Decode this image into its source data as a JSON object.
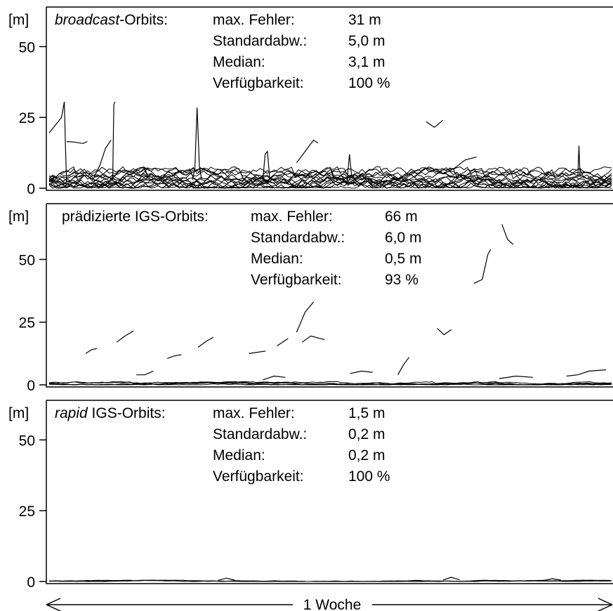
{
  "chart_data": [
    {
      "type": "line",
      "unit_label": "[m]",
      "title_prefix_italic": "broadcast",
      "title_suffix": "-Orbits:",
      "ylim": [
        0,
        62
      ],
      "yticks": [
        {
          "value": 0,
          "label": "0"
        },
        {
          "value": 25,
          "label": "25"
        },
        {
          "value": 50,
          "label": "50"
        }
      ],
      "stats": {
        "labels": [
          "max. Fehler:",
          "Standardabw.:",
          "Median:",
          "Verfügbarkeit:"
        ],
        "values": [
          "31 m",
          "5,0 m",
          "3,1 m",
          "100 %"
        ]
      },
      "noise": {
        "base": 3.1,
        "amp": 4.5,
        "count": 16
      },
      "traces": [
        {
          "x": [
            0.0,
            0.008,
            0.022,
            0.027
          ],
          "y": [
            19.5,
            21.5,
            25,
            30.5
          ]
        },
        {
          "x": [
            0.027,
            0.029,
            0.031
          ],
          "y": [
            30.5,
            15,
            2
          ]
        },
        {
          "x": [
            0.031,
            0.045,
            0.06,
            0.068
          ],
          "y": [
            16.5,
            16.3,
            15.8,
            16.5
          ]
        },
        {
          "x": [
            0.113,
            0.115,
            0.117
          ],
          "y": [
            3,
            29.5,
            30.5
          ]
        },
        {
          "x": [
            0.08,
            0.09,
            0.1,
            0.11
          ],
          "y": [
            4,
            8,
            14,
            17
          ]
        },
        {
          "x": [
            0.255,
            0.259,
            0.263,
            0.267,
            0.271
          ],
          "y": [
            3,
            7,
            28.5,
            8,
            3
          ]
        },
        {
          "x": [
            0.44,
            0.455,
            0.47,
            0.478
          ],
          "y": [
            9,
            13,
            17,
            16
          ]
        },
        {
          "x": [
            0.67,
            0.685,
            0.7
          ],
          "y": [
            23.5,
            21.5,
            24
          ]
        },
        {
          "x": [
            0.7,
            0.72,
            0.74,
            0.76
          ],
          "y": [
            5,
            7,
            10,
            11
          ]
        },
        {
          "x": [
            0.94,
            0.942,
            0.944
          ],
          "y": [
            4,
            15,
            4
          ]
        },
        {
          "x": [
            0.38,
            0.384,
            0.388,
            0.392
          ],
          "y": [
            3,
            12,
            13,
            4
          ]
        },
        {
          "x": [
            0.53,
            0.534,
            0.538
          ],
          "y": [
            3,
            12,
            4
          ]
        }
      ]
    },
    {
      "type": "line",
      "unit_label": "[m]",
      "title_prefix_italic": "",
      "title_suffix": "prädizierte IGS-Orbits:",
      "ylim": [
        0,
        70
      ],
      "yticks": [
        {
          "value": 0,
          "label": "0"
        },
        {
          "value": 25,
          "label": "25"
        },
        {
          "value": 50,
          "label": "50"
        }
      ],
      "stats": {
        "labels": [
          "max. Fehler:",
          "Standardabw.:",
          "Median:",
          "Verfügbarkeit:"
        ],
        "values": [
          "66 m",
          "6,0 m",
          "0,5 m",
          "93 %"
        ]
      },
      "noise": {
        "base": 0.5,
        "amp": 0.8,
        "count": 5
      },
      "traces": [
        {
          "x": [
            0.065,
            0.075,
            0.085
          ],
          "y": [
            12.5,
            14,
            14.5
          ]
        },
        {
          "x": [
            0.12,
            0.135,
            0.15
          ],
          "y": [
            17,
            19.5,
            21.5
          ]
        },
        {
          "x": [
            0.155,
            0.17,
            0.185
          ],
          "y": [
            4,
            4,
            5.5
          ]
        },
        {
          "x": [
            0.21,
            0.222,
            0.235
          ],
          "y": [
            10.5,
            11.5,
            12
          ]
        },
        {
          "x": [
            0.265,
            0.28,
            0.292
          ],
          "y": [
            15,
            17.5,
            19
          ]
        },
        {
          "x": [
            0.355,
            0.37,
            0.385
          ],
          "y": [
            12.5,
            13,
            13.5
          ]
        },
        {
          "x": [
            0.405,
            0.415,
            0.425
          ],
          "y": [
            15.5,
            17,
            18.5
          ]
        },
        {
          "x": [
            0.44,
            0.455,
            0.47
          ],
          "y": [
            21,
            29,
            33
          ]
        },
        {
          "x": [
            0.45,
            0.465,
            0.49
          ],
          "y": [
            17,
            19.5,
            18
          ]
        },
        {
          "x": [
            0.62,
            0.63,
            0.64
          ],
          "y": [
            4,
            8,
            11
          ]
        },
        {
          "x": [
            0.69,
            0.702,
            0.715
          ],
          "y": [
            22.5,
            20,
            22
          ]
        },
        {
          "x": [
            0.755,
            0.77,
            0.78,
            0.785
          ],
          "y": [
            40.5,
            42,
            52,
            54
          ]
        },
        {
          "x": [
            0.805,
            0.815,
            0.825
          ],
          "y": [
            64,
            58,
            56
          ]
        },
        {
          "x": [
            0.92,
            0.94,
            0.96,
            0.99
          ],
          "y": [
            3.5,
            4,
            5.5,
            6
          ]
        },
        {
          "x": [
            0.38,
            0.4,
            0.42
          ],
          "y": [
            2,
            3.5,
            3
          ]
        },
        {
          "x": [
            0.535,
            0.555,
            0.575
          ],
          "y": [
            4.5,
            5.5,
            5
          ]
        },
        {
          "x": [
            0.8,
            0.83,
            0.86
          ],
          "y": [
            2.5,
            3.5,
            3
          ]
        }
      ]
    },
    {
      "type": "line",
      "unit_label": "[m]",
      "title_prefix_italic": "rapid",
      "title_suffix": " IGS-Orbits:",
      "ylim": [
        0,
        62
      ],
      "yticks": [
        {
          "value": 0,
          "label": "0"
        },
        {
          "value": 25,
          "label": "25"
        },
        {
          "value": 50,
          "label": "50"
        }
      ],
      "stats": {
        "labels": [
          "max. Fehler:",
          "Standardabw.:",
          "Median:",
          "Verfügbarkeit:"
        ],
        "values": [
          "1,5 m",
          "0,2 m",
          "0,2 m",
          "100 %"
        ]
      },
      "noise": {
        "base": 0.2,
        "amp": 0.3,
        "count": 3
      },
      "traces": [
        {
          "x": [
            0.3,
            0.315,
            0.33
          ],
          "y": [
            0.4,
            1.2,
            0.5
          ]
        },
        {
          "x": [
            0.7,
            0.715,
            0.73
          ],
          "y": [
            0.5,
            1.5,
            0.6
          ]
        },
        {
          "x": [
            0.88,
            0.895,
            0.91
          ],
          "y": [
            0.4,
            1.0,
            0.5
          ]
        }
      ]
    }
  ],
  "footer": {
    "label": "1 Woche"
  }
}
